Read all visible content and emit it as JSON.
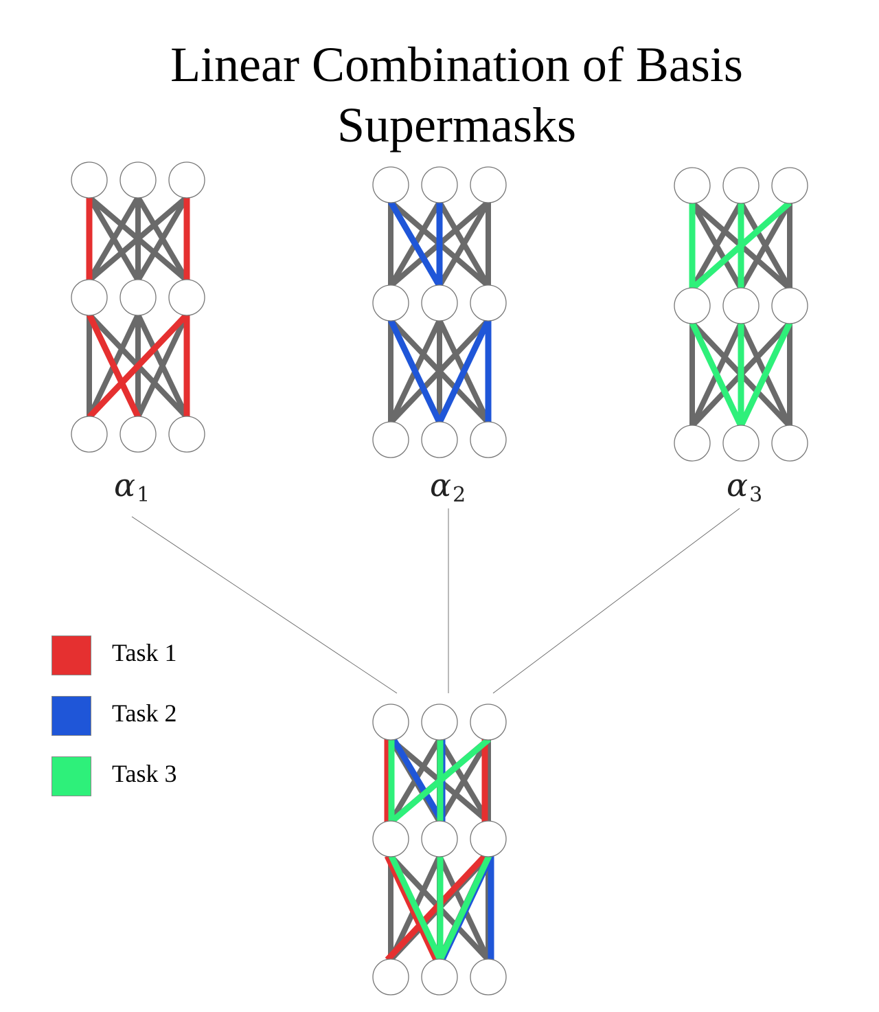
{
  "title": {
    "line1": "Linear Combination of Basis",
    "line2": "Supermasks"
  },
  "colors": {
    "task1": "#e53030",
    "task2": "#1f56d8",
    "task3": "#2ef07a",
    "edge": "#6a6a6a",
    "node_stroke": "#777777",
    "connector": "#666666"
  },
  "legend": [
    {
      "label": "Task 1",
      "color": "#e53030"
    },
    {
      "label": "Task 2",
      "color": "#1f56d8"
    },
    {
      "label": "Task 3",
      "color": "#2ef07a"
    }
  ],
  "coefficients": [
    {
      "symbol": "α",
      "subscript": "1"
    },
    {
      "symbol": "α",
      "subscript": "2"
    },
    {
      "symbol": "α",
      "subscript": "3"
    }
  ]
}
